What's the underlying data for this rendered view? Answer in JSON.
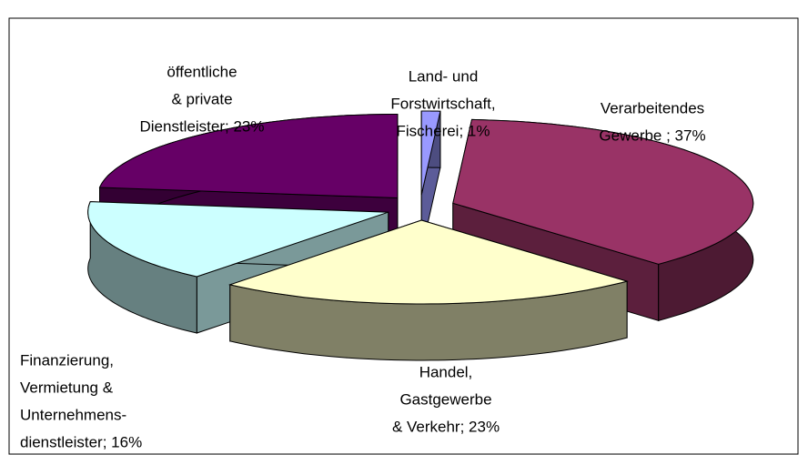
{
  "chart_data": {
    "type": "pie3d",
    "values": [
      1,
      37,
      23,
      16,
      23
    ],
    "value_labels": [
      [
        "Land- und",
        "Forstwirtschaft,",
        "Fischerei; 1%"
      ],
      [
        "Verarbeitendes",
        "Gewerbe ; 37%"
      ],
      [
        "Handel,",
        "Gastgewerbe",
        "& Verkehr; 23%"
      ],
      [
        "Finanzierung,",
        "Vermietung &",
        "Unternehmens-",
        "dienstleister; 16%"
      ],
      [
        "öffentliche",
        "& private",
        "Dienstleister; 23%"
      ]
    ],
    "colors": [
      "#9999ff",
      "#993366",
      "#ffffcc",
      "#ccffff",
      "#660066"
    ]
  }
}
